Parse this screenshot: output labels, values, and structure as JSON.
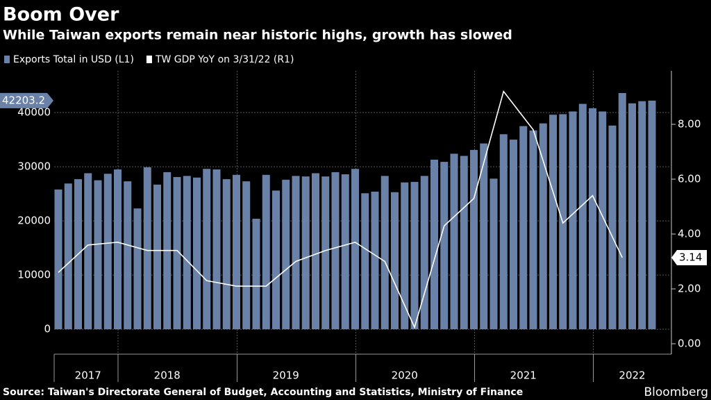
{
  "chart_data": {
    "type": "bar",
    "title": "Boom Over",
    "subtitle": "While Taiwan exports remain near historic highs, growth has slowed",
    "source": "Source: Taiwan's Directorate General of Budget, Accounting and Statistics, Ministry of Finance",
    "brand": "Bloomberg",
    "categories": [
      null,
      null,
      null,
      "2017",
      null,
      null,
      null,
      null,
      null,
      null,
      null,
      "2018",
      null,
      null,
      null,
      null,
      null,
      null,
      null,
      null,
      null,
      null,
      null,
      "2019",
      null,
      null,
      null,
      null,
      null,
      null,
      null,
      null,
      null,
      null,
      null,
      "2020",
      null,
      null,
      null,
      null,
      null,
      null,
      null,
      null,
      null,
      null,
      null,
      "2021",
      null,
      null,
      null,
      null,
      null,
      null,
      null,
      null,
      null,
      null,
      "2022",
      null,
      null
    ],
    "series": [
      {
        "name": "Exports Total in USD (L1)",
        "color": "#6b82a8",
        "values": [
          25800,
          26900,
          27700,
          28800,
          27500,
          28700,
          29500,
          27300,
          22300,
          29900,
          26700,
          29000,
          28100,
          28300,
          28000,
          29600,
          29500,
          27700,
          28500,
          27300,
          20400,
          28500,
          25600,
          27600,
          28300,
          28200,
          28800,
          28200,
          29000,
          28600,
          29600,
          25100,
          25400,
          28300,
          25300,
          27100,
          27200,
          28300,
          31300,
          30900,
          32400,
          32000,
          33100,
          34300,
          27800,
          36000,
          35000,
          37500,
          36700,
          38000,
          39600,
          39700,
          40200,
          41600,
          40800,
          40200,
          37600,
          43600,
          41700,
          42100,
          42203.2
        ]
      },
      {
        "name": "TW GDP YoY on 3/31/22 (R1)",
        "color": "#ffffff",
        "type": "line",
        "axis": "y2",
        "values": [
          2.6,
          null,
          null,
          3.6,
          null,
          null,
          3.7,
          null,
          null,
          3.4,
          null,
          null,
          3.4,
          null,
          null,
          2.3,
          null,
          null,
          2.1,
          null,
          null,
          2.1,
          null,
          null,
          3.0,
          null,
          null,
          3.4,
          null,
          null,
          3.7,
          null,
          null,
          3.0,
          null,
          null,
          0.6,
          null,
          null,
          4.3,
          null,
          null,
          5.3,
          null,
          null,
          9.2,
          null,
          null,
          7.8,
          null,
          null,
          4.4,
          null,
          null,
          5.4,
          null,
          null,
          3.14,
          null,
          null,
          null
        ]
      }
    ],
    "ylim": [
      -4600,
      47700
    ],
    "yticks": [
      0,
      10000,
      20000,
      30000,
      40000
    ],
    "y2lim": [
      -0.38,
      9.95
    ],
    "y2ticks": [
      {
        "value": 0,
        "label": "0.00"
      },
      {
        "value": 2,
        "label": "2.00"
      },
      {
        "value": 4,
        "label": "4.00"
      },
      {
        "value": 6,
        "label": "6.00"
      },
      {
        "value": 8,
        "label": "8.00"
      }
    ],
    "grid": true
  }
}
